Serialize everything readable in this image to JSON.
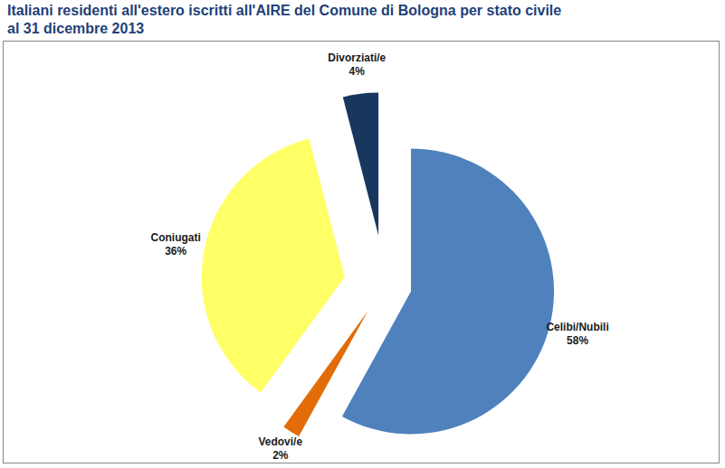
{
  "chart_data": {
    "type": "pie",
    "title": "Italiani residenti all'estero iscritti all'AIRE del Comune di Bologna per stato civile al 31 dicembre 2013",
    "categories": [
      "Celibi/Nubili",
      "Vedovi/e",
      "Coniugati",
      "Divorziati/e"
    ],
    "values": [
      58,
      2,
      36,
      4
    ],
    "value_labels": [
      "58%",
      "2%",
      "36%",
      "4%"
    ],
    "colors": [
      "#4f81bd",
      "#e36c09",
      "#ffff66",
      "#17375e"
    ],
    "data_labels": true
  }
}
